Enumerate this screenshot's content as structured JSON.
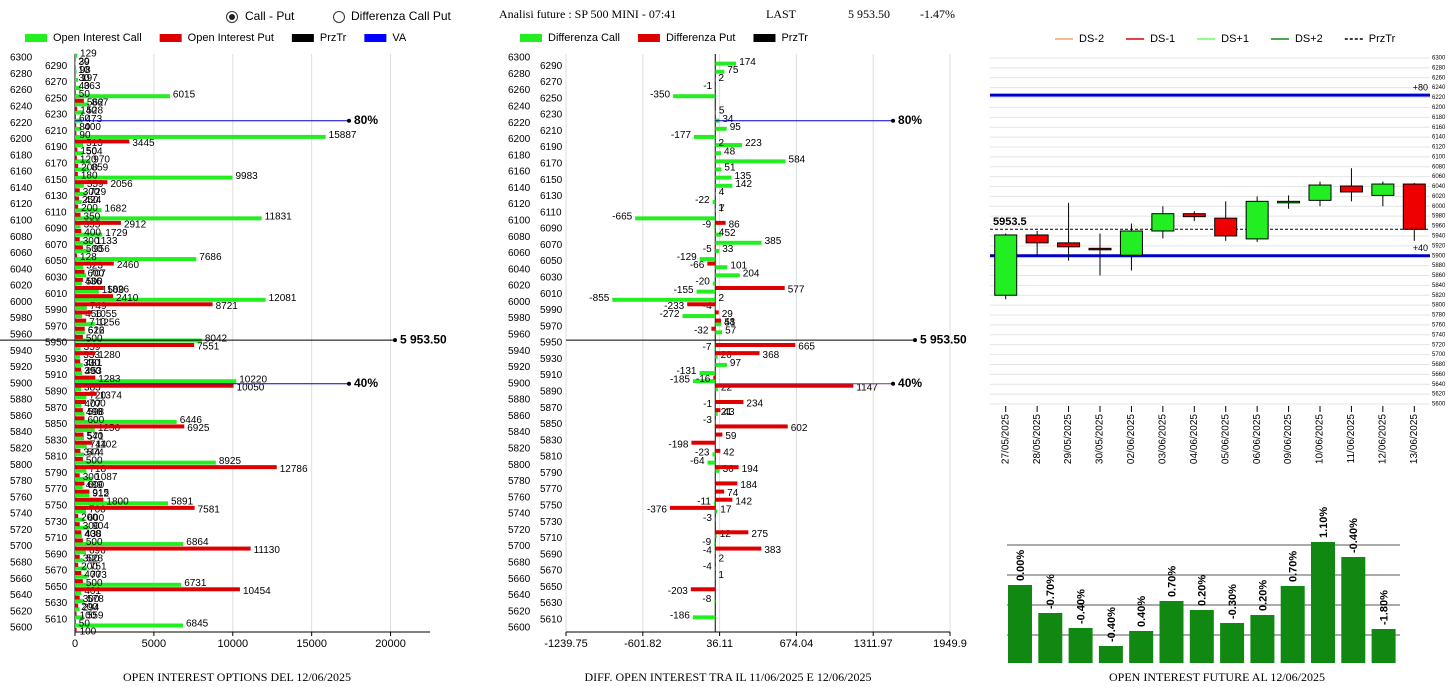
{
  "header": {
    "options": [
      "Call - Put",
      "Differenza Call Put"
    ],
    "selected": 0,
    "title": "Analisi future : SP 500 MINI - 07:41",
    "last_label": "LAST",
    "last": "5 953.50",
    "change": "-1.47%"
  },
  "chart_data": [
    {
      "type": "hbar",
      "title": "OPEN INTEREST OPTIONS DEL 12/06/2025",
      "categories": [
        6300,
        6290,
        6280,
        6270,
        6260,
        6250,
        6240,
        6230,
        6220,
        6210,
        6200,
        6190,
        6180,
        6170,
        6160,
        6150,
        6140,
        6130,
        6120,
        6110,
        6100,
        6090,
        6080,
        6070,
        6060,
        6050,
        6040,
        6030,
        6020,
        6010,
        6000,
        5990,
        5980,
        5970,
        5960,
        5950,
        5940,
        5930,
        5920,
        5910,
        5900,
        5890,
        5880,
        5870,
        5860,
        5850,
        5840,
        5830,
        5820,
        5810,
        5800,
        5790,
        5780,
        5770,
        5760,
        5750,
        5740,
        5730,
        5720,
        5710,
        5700,
        5690,
        5680,
        5670,
        5660,
        5650,
        5640,
        5630,
        5620,
        5610,
        5600
      ],
      "series": [
        {
          "name": "Open Interest Call",
          "color": "#22ee22",
          "values": [
            129,
            39,
            98,
            197,
            363,
            6015,
            867,
            528,
            473,
            400,
            15887,
            513,
            504,
            970,
            859,
            9983,
            559,
            729,
            424,
            1682,
            11831,
            355,
            1729,
            1133,
            956,
            7686,
            523,
            707,
            436,
            1509,
            12081,
            749,
            456,
            1256,
            622,
            8042,
            359,
            333,
            481,
            453,
            10220,
            383,
            720,
            407,
            598,
            6446,
            1256,
            571,
            744,
            574,
            8925,
            718,
            1087,
            489,
            912,
            5891,
            700,
            600,
            904,
            438,
            6864,
            696,
            528,
            751,
            773,
            6731,
            401,
            578,
            294,
            559,
            6845
          ]
        },
        {
          "name": "Open Interest Put",
          "color": "#dd0000",
          "values": [
            20,
            10,
            30,
            40,
            50,
            562,
            140,
            60,
            80,
            90,
            3445,
            150,
            120,
            200,
            180,
            2056,
            300,
            250,
            200,
            350,
            2912,
            400,
            300,
            500,
            128,
            2460,
            600,
            500,
            1826,
            2410,
            8721,
            1055,
            710,
            616,
            500,
            7551,
            1280,
            330,
            390,
            1283,
            10050,
            1374,
            700,
            498,
            600,
            6925,
            540,
            1102,
            344,
            500,
            12786,
            300,
            600,
            915,
            1800,
            7581,
            200,
            300,
            400,
            500,
            11130,
            300,
            200,
            400,
            500,
            10454,
            300,
            200,
            100,
            50,
            100
          ]
        }
      ],
      "legend_extra": [
        {
          "name": "PrzTr",
          "color": "#000000"
        },
        {
          "name": "VA",
          "color": "#0000ff"
        }
      ],
      "xlim": [
        0,
        22500
      ],
      "xticks": [
        0,
        5000,
        10000,
        15000,
        20000
      ],
      "grid": true,
      "lines": [
        {
          "value": 6223,
          "label": "80%",
          "color": "#0000cc"
        },
        {
          "value": 5953.5,
          "label": "5 953.50",
          "color": "#000000"
        },
        {
          "value": 5900,
          "label": "40%",
          "color": "#0000cc"
        }
      ]
    },
    {
      "type": "hbar",
      "title": "DIFF. OPEN INTEREST TRA IL 11/06/2025 E 12/06/2025",
      "categories": [
        6300,
        6290,
        6280,
        6270,
        6260,
        6250,
        6240,
        6230,
        6220,
        6210,
        6200,
        6190,
        6180,
        6170,
        6160,
        6150,
        6140,
        6130,
        6120,
        6110,
        6100,
        6090,
        6080,
        6070,
        6060,
        6050,
        6040,
        6030,
        6020,
        6010,
        6000,
        5990,
        5980,
        5970,
        5960,
        5950,
        5940,
        5930,
        5920,
        5910,
        5900,
        5890,
        5880,
        5870,
        5860,
        5850,
        5840,
        5830,
        5820,
        5810,
        5800,
        5790,
        5780,
        5770,
        5760,
        5750,
        5740,
        5730,
        5720,
        5710,
        5700,
        5690,
        5680,
        5670,
        5660,
        5650,
        5640,
        5630,
        5620,
        5610,
        5600
      ],
      "series": [
        {
          "name": "Differenza Call",
          "color": "#22ee22",
          "values": [
            null,
            174,
            75,
            2,
            -1,
            -350,
            null,
            5,
            34,
            95,
            -177,
            223,
            48,
            584,
            51,
            135,
            142,
            4,
            -22,
            7,
            -665,
            -9,
            52,
            385,
            33,
            -129,
            101,
            204,
            -20,
            -155,
            -855,
            -4,
            -272,
            51,
            57,
            null,
            -7,
            20,
            97,
            -131,
            -185,
            22,
            null,
            -1,
            21,
            -3,
            null,
            null,
            null,
            -23,
            -64,
            36,
            null,
            null,
            null,
            -11,
            17,
            -3,
            null,
            12,
            -9,
            -4,
            2,
            -4,
            1,
            null,
            null,
            -8,
            null,
            -186,
            null
          ]
        },
        {
          "name": "Differenza Put",
          "color": "#dd0000",
          "values": [
            null,
            null,
            null,
            null,
            null,
            null,
            null,
            null,
            null,
            null,
            2,
            null,
            null,
            null,
            null,
            null,
            null,
            null,
            1,
            null,
            86,
            4,
            null,
            -5,
            null,
            -66,
            null,
            null,
            577,
            2,
            -233,
            29,
            48,
            -32,
            null,
            665,
            368,
            null,
            null,
            -16,
            1147,
            null,
            234,
            43,
            null,
            602,
            59,
            -198,
            42,
            null,
            194,
            null,
            184,
            74,
            142,
            -376,
            null,
            null,
            275,
            null,
            383,
            null,
            null,
            null,
            null,
            -203,
            null,
            null,
            null,
            null,
            null
          ]
        }
      ],
      "legend_extra": [
        {
          "name": "PrzTr",
          "color": "#000000"
        }
      ],
      "xlim": [
        -1239.75,
        1949.9
      ],
      "xticks": [
        -1239.75,
        -601.82,
        36.11,
        674.04,
        1311.97,
        1949.9
      ],
      "grid": true,
      "lines": [
        {
          "value": 6223,
          "label": "80%",
          "color": "#0000cc"
        },
        {
          "value": 5953.5,
          "label": "5 953.50",
          "color": "#000000"
        },
        {
          "value": 5900,
          "label": "40%",
          "color": "#7030a0"
        }
      ]
    },
    {
      "type": "candlestick",
      "categories": [
        "27/05/2025",
        "28/05/2025",
        "29/05/2025",
        "30/05/2025",
        "02/06/2025",
        "03/06/2025",
        "04/06/2025",
        "05/06/2025",
        "06/06/2025",
        "09/06/2025",
        "10/06/2025",
        "11/06/2025",
        "12/06/2025",
        "13/06/2025"
      ],
      "open": [
        5820,
        5942,
        5926,
        5915,
        5901,
        5950,
        5985,
        5976,
        5934,
        6008,
        6012,
        6041,
        6022,
        6045
      ],
      "high": [
        5945,
        5950,
        6007,
        5945,
        5965,
        6000,
        5990,
        6010,
        6020,
        6022,
        6050,
        6077,
        6050,
        6047
      ],
      "low": [
        5812,
        5900,
        5890,
        5860,
        5870,
        5935,
        5970,
        5930,
        5928,
        5995,
        6000,
        6010,
        6000,
        5930
      ],
      "close": [
        5942,
        5926,
        5918,
        5912,
        5950,
        5985,
        5979,
        5940,
        6010,
        6010,
        6043,
        6029,
        6045,
        5953.5
      ],
      "up_color": "#22ee22",
      "down_color": "#ee0000",
      "ylim": [
        5600,
        6300
      ],
      "yticks": [
        5600,
        5620,
        5640,
        5660,
        5680,
        5700,
        5720,
        5740,
        5760,
        5780,
        5800,
        5820,
        5840,
        5860,
        5880,
        5900,
        5920,
        5940,
        5960,
        5980,
        6000,
        6020,
        6040,
        6060,
        6080,
        6100,
        6120,
        6140,
        6160,
        6180,
        6200,
        6220,
        6240,
        6260,
        6280,
        6300
      ],
      "grid": true,
      "legend": [
        {
          "name": "DS-2",
          "color": "#f4a070"
        },
        {
          "name": "DS-1",
          "color": "#dd0000"
        },
        {
          "name": "DS+1",
          "color": "#66ff66"
        },
        {
          "name": "DS+2",
          "color": "#118811"
        },
        {
          "name": "PrzTr",
          "color": "#000000",
          "dashed": true
        }
      ],
      "lines": [
        {
          "value": 6225,
          "label": "+80",
          "color": "#0000cc"
        },
        {
          "value": 5900,
          "label": "+40",
          "color": "#0000cc"
        },
        {
          "value": 5953.5,
          "label": "5953.5",
          "color": "#000000",
          "dashed": true
        }
      ]
    },
    {
      "type": "bar",
      "title": "OPEN INTEREST FUTURE AL 12/06/2025",
      "color": "#118811",
      "values": [
        78,
        50,
        35,
        17,
        32,
        62,
        53,
        40,
        48,
        77,
        121,
        106,
        34
      ],
      "changes": [
        0,
        -0.7,
        -0.4,
        -0.4,
        0.4,
        0.7,
        0.2,
        -0.3,
        0.2,
        0.7,
        1.1,
        -0.4,
        -1.8
      ],
      "change_labels": [
        "0.00%",
        "-0.70%",
        "-0.40%",
        "-0.40%",
        "0.40%",
        "0.70%",
        "0.20%",
        "-0.30%",
        "0.20%",
        "0.70%",
        "1.10%",
        "-0.40%",
        "-1.80%"
      ],
      "ylim": [
        0,
        130
      ],
      "gridlines": [
        28,
        58,
        88,
        118
      ]
    }
  ]
}
